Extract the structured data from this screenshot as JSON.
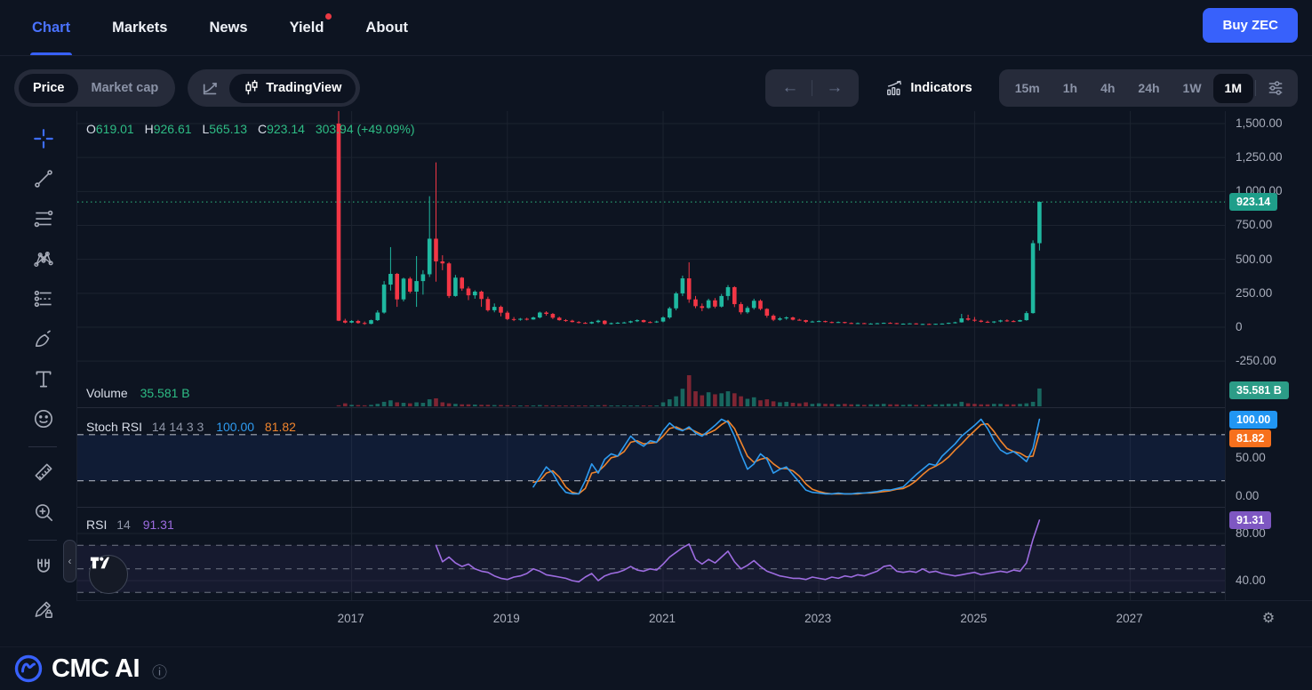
{
  "nav": {
    "items": [
      {
        "label": "Chart",
        "active": true,
        "dot": false
      },
      {
        "label": "Markets",
        "active": false,
        "dot": false
      },
      {
        "label": "News",
        "active": false,
        "dot": false
      },
      {
        "label": "Yield",
        "active": false,
        "dot": true
      },
      {
        "label": "About",
        "active": false,
        "dot": false
      }
    ],
    "buy_button": "Buy ZEC"
  },
  "toolbar": {
    "price_tab": "Price",
    "market_cap_tab": "Market cap",
    "tradingview_label": "TradingView",
    "indicators_label": "Indicators",
    "timeframes": [
      "15m",
      "1h",
      "4h",
      "24h",
      "1W",
      "1M"
    ],
    "active_timeframe": "1M"
  },
  "legend": {
    "o_label": "O",
    "o": "619.01",
    "h_label": "H",
    "h": "926.61",
    "l_label": "L",
    "l": "565.13",
    "c_label": "C",
    "c": "923.14",
    "change": "303.94 (+49.09%)"
  },
  "volume_legend": {
    "label": "Volume",
    "value": "35.581 B"
  },
  "stoch_legend": {
    "label": "Stoch RSI",
    "params": "14 14 3 3",
    "k_value": "100.00",
    "d_value": "81.82"
  },
  "rsi_legend": {
    "label": "RSI",
    "param": "14",
    "value": "91.31"
  },
  "axis": {
    "price_ticks": [
      {
        "v": 1500,
        "label": "1,500.00"
      },
      {
        "v": 1250,
        "label": "1,250.00"
      },
      {
        "v": 1000,
        "label": "1,000.00"
      },
      {
        "v": 750,
        "label": "750.00"
      },
      {
        "v": 500,
        "label": "500.00"
      },
      {
        "v": 250,
        "label": "250.00"
      },
      {
        "v": 0,
        "label": "0"
      },
      {
        "v": -250,
        "label": "-250.00"
      }
    ],
    "price_badge": "923.14",
    "volume_badge": "35.581 B",
    "stoch_ticks": [
      {
        "v": 50,
        "label": "50.00"
      },
      {
        "v": 0,
        "label": "0.00"
      }
    ],
    "stoch_badges": {
      "k": "100.00",
      "d": "81.82"
    },
    "rsi_ticks": [
      {
        "v": 80,
        "label": "80.00"
      },
      {
        "v": 40,
        "label": "40.00"
      }
    ],
    "rsi_badge": "91.31",
    "years": [
      "2017",
      "2019",
      "2021",
      "2023",
      "2025",
      "2027"
    ]
  },
  "sidebar_tools": [
    "crosshair",
    "trend-line",
    "fib-retracement",
    "xabcd-pattern",
    "long-position",
    "brush",
    "text",
    "emoji",
    "divider",
    "measure",
    "zoom-in",
    "divider",
    "magnet",
    "drawing-lock"
  ],
  "footer": {
    "title": "CMC AI",
    "info_icon": "info"
  },
  "colors": {
    "accent_blue": "#3861fb",
    "candle_up": "#1fb8a0",
    "candle_down": "#f23645",
    "teal_text": "#2ebd85",
    "price_badge_bg": "#1f9e8a",
    "volume_badge_bg": "#2c9c87",
    "stoch_k": "#2e9bf0",
    "stoch_d": "#f0842c",
    "stoch_k_badge_bg": "#2196f3",
    "stoch_d_badge_bg": "#f7701d",
    "rsi_line": "#9d6ce0",
    "rsi_badge_bg": "#7e57c2",
    "grid": "#1c2330",
    "red_dot": "#ea3943"
  },
  "chart_data": {
    "type": "candlestick",
    "symbol": "ZEC",
    "interval": "1M",
    "start_month": "2016-11",
    "current_price": 923.14,
    "price_axis": {
      "ticks": [
        1500,
        1250,
        1000,
        750,
        500,
        250,
        0,
        -250
      ],
      "zero_y_frac": 0.44
    },
    "years_axis": [
      "2017",
      "2019",
      "2021",
      "2023",
      "2025",
      "2027"
    ],
    "candles": [
      [
        1500,
        1600,
        45,
        48
      ],
      [
        48,
        62,
        28,
        34
      ],
      [
        34,
        52,
        30,
        46
      ],
      [
        46,
        54,
        26,
        31
      ],
      [
        31,
        42,
        18,
        25
      ],
      [
        25,
        56,
        22,
        52
      ],
      [
        52,
        125,
        46,
        108
      ],
      [
        108,
        340,
        100,
        314
      ],
      [
        314,
        590,
        270,
        393
      ],
      [
        393,
        400,
        150,
        205
      ],
      [
        205,
        365,
        190,
        358
      ],
      [
        358,
        370,
        250,
        262
      ],
      [
        262,
        524,
        150,
        340
      ],
      [
        340,
        420,
        240,
        390
      ],
      [
        390,
        965,
        370,
        652
      ],
      [
        652,
        1214,
        336,
        485
      ],
      [
        485,
        530,
        420,
        470
      ],
      [
        470,
        480,
        215,
        230
      ],
      [
        230,
        385,
        225,
        365
      ],
      [
        365,
        370,
        268,
        285
      ],
      [
        285,
        300,
        200,
        235
      ],
      [
        235,
        272,
        210,
        262
      ],
      [
        262,
        270,
        150,
        208
      ],
      [
        208,
        225,
        115,
        125
      ],
      [
        125,
        175,
        110,
        150
      ],
      [
        150,
        160,
        80,
        107
      ],
      [
        107,
        120,
        52,
        60
      ],
      [
        60,
        75,
        45,
        55
      ],
      [
        55,
        68,
        48,
        62
      ],
      [
        62,
        70,
        50,
        57
      ],
      [
        57,
        78,
        55,
        72
      ],
      [
        72,
        115,
        65,
        108
      ],
      [
        108,
        118,
        85,
        98
      ],
      [
        98,
        105,
        60,
        70
      ],
      [
        70,
        78,
        48,
        52
      ],
      [
        52,
        60,
        40,
        48
      ],
      [
        48,
        55,
        35,
        38
      ],
      [
        38,
        45,
        28,
        32
      ],
      [
        32,
        38,
        25,
        28
      ],
      [
        28,
        42,
        24,
        38
      ],
      [
        38,
        55,
        30,
        48
      ],
      [
        48,
        52,
        18,
        24
      ],
      [
        24,
        34,
        20,
        30
      ],
      [
        30,
        38,
        25,
        33
      ],
      [
        33,
        40,
        28,
        35
      ],
      [
        35,
        48,
        30,
        44
      ],
      [
        44,
        58,
        38,
        52
      ],
      [
        52,
        56,
        34,
        38
      ],
      [
        38,
        44,
        30,
        36
      ],
      [
        36,
        48,
        32,
        42
      ],
      [
        42,
        80,
        36,
        72
      ],
      [
        72,
        150,
        62,
        139
      ],
      [
        139,
        260,
        125,
        249
      ],
      [
        249,
        380,
        230,
        360
      ],
      [
        360,
        478,
        180,
        205
      ],
      [
        205,
        230,
        140,
        155
      ],
      [
        155,
        175,
        118,
        142
      ],
      [
        142,
        210,
        135,
        198
      ],
      [
        198,
        215,
        140,
        152
      ],
      [
        152,
        245,
        145,
        230
      ],
      [
        230,
        310,
        200,
        295
      ],
      [
        295,
        302,
        148,
        170
      ],
      [
        170,
        185,
        95,
        110
      ],
      [
        110,
        155,
        100,
        142
      ],
      [
        142,
        210,
        130,
        195
      ],
      [
        195,
        205,
        125,
        135
      ],
      [
        135,
        140,
        70,
        85
      ],
      [
        85,
        95,
        45,
        55
      ],
      [
        55,
        75,
        48,
        65
      ],
      [
        65,
        80,
        55,
        72
      ],
      [
        72,
        78,
        50,
        55
      ],
      [
        55,
        62,
        48,
        52
      ],
      [
        52,
        55,
        32,
        40
      ],
      [
        40,
        48,
        35,
        42
      ],
      [
        42,
        50,
        38,
        45
      ],
      [
        45,
        48,
        35,
        38
      ],
      [
        38,
        42,
        30,
        35
      ],
      [
        35,
        42,
        32,
        38
      ],
      [
        38,
        40,
        28,
        31
      ],
      [
        31,
        35,
        25,
        28
      ],
      [
        28,
        34,
        26,
        30
      ],
      [
        30,
        32,
        24,
        26
      ],
      [
        26,
        30,
        23,
        27
      ],
      [
        27,
        32,
        25,
        29
      ],
      [
        29,
        34,
        27,
        32
      ],
      [
        32,
        36,
        28,
        30
      ],
      [
        30,
        32,
        22,
        24
      ],
      [
        24,
        28,
        21,
        26
      ],
      [
        26,
        30,
        23,
        28
      ],
      [
        28,
        30,
        20,
        23
      ],
      [
        23,
        26,
        19,
        24
      ],
      [
        24,
        27,
        20,
        22
      ],
      [
        22,
        26,
        19,
        25
      ],
      [
        25,
        28,
        21,
        27
      ],
      [
        27,
        34,
        24,
        32
      ],
      [
        32,
        40,
        28,
        36
      ],
      [
        36,
        98,
        34,
        65
      ],
      [
        65,
        92,
        48,
        55
      ],
      [
        55,
        75,
        40,
        48
      ],
      [
        48,
        55,
        35,
        40
      ],
      [
        40,
        48,
        32,
        36
      ],
      [
        36,
        45,
        30,
        42
      ],
      [
        42,
        55,
        36,
        50
      ],
      [
        50,
        58,
        40,
        45
      ],
      [
        45,
        52,
        38,
        42
      ],
      [
        42,
        55,
        40,
        52
      ],
      [
        52,
        118,
        48,
        104
      ],
      [
        104,
        640,
        100,
        619
      ],
      [
        619,
        926.61,
        565.13,
        923.14
      ]
    ],
    "volume_b": [
      2,
      6,
      3,
      2.5,
      2,
      3,
      5,
      9,
      12,
      8,
      7,
      6,
      8,
      7,
      14,
      16,
      8,
      6,
      5,
      4,
      4,
      3.5,
      3,
      3,
      2.5,
      2.5,
      2,
      1.8,
      1.5,
      1.5,
      1.8,
      2.5,
      2,
      1.8,
      1.5,
      1.2,
      1.2,
      1,
      1,
      1.5,
      2,
      2.5,
      1.5,
      1.2,
      1.2,
      1.5,
      1.8,
      1.5,
      1.2,
      1.5,
      8,
      14,
      20,
      35,
      62,
      30,
      22,
      28,
      24,
      26,
      30,
      26,
      20,
      15,
      18,
      12,
      14,
      10,
      8,
      9,
      7,
      6,
      8,
      5,
      6,
      5,
      5,
      4,
      5,
      4,
      4,
      3,
      4,
      4,
      5,
      4,
      4,
      3,
      4,
      3,
      3,
      3,
      4,
      4,
      5,
      5,
      9,
      6,
      5,
      4,
      4,
      5,
      5,
      4,
      4,
      5,
      6,
      9,
      35.581
    ],
    "volume_current_b": 35.581,
    "stoch_rsi": {
      "params": [
        14,
        14,
        3,
        3
      ],
      "start_index": 30,
      "bands": [
        80,
        20
      ],
      "last_k": 100.0,
      "last_d": 81.82,
      "k": [
        12,
        25,
        38,
        30,
        15,
        5,
        3,
        3,
        20,
        42,
        30,
        48,
        55,
        52,
        65,
        78,
        70,
        65,
        72,
        70,
        85,
        95,
        88,
        85,
        90,
        82,
        78,
        85,
        92,
        100,
        96,
        78,
        55,
        35,
        42,
        55,
        48,
        30,
        35,
        38,
        28,
        18,
        8,
        5,
        4,
        3,
        3,
        4,
        3,
        3,
        4,
        4,
        5,
        6,
        8,
        8,
        10,
        12,
        20,
        28,
        35,
        42,
        40,
        52,
        60,
        68,
        78,
        85,
        92,
        100,
        88,
        72,
        60,
        55,
        58,
        52,
        45,
        62,
        100
      ],
      "d": [
        18,
        20,
        30,
        33,
        25,
        12,
        5,
        3,
        10,
        30,
        32,
        40,
        50,
        52,
        58,
        70,
        72,
        68,
        69,
        70,
        78,
        88,
        90,
        86,
        88,
        84,
        80,
        82,
        86,
        93,
        98,
        88,
        70,
        52,
        44,
        48,
        50,
        42,
        36,
        36,
        33,
        26,
        16,
        9,
        6,
        4,
        3,
        3,
        3,
        3,
        3,
        4,
        4,
        5,
        6,
        7,
        9,
        10,
        14,
        20,
        28,
        35,
        39,
        44,
        51,
        60,
        68,
        77,
        85,
        93,
        94,
        84,
        72,
        62,
        58,
        56,
        51,
        52,
        81.82
      ]
    },
    "rsi": {
      "period": 14,
      "start_index": 15,
      "bands": [
        70,
        50,
        30
      ],
      "last": 91.31,
      "values": [
        70,
        56,
        60,
        55,
        52,
        54,
        50,
        48,
        47,
        44,
        42,
        41,
        43,
        44,
        46,
        50,
        48,
        45,
        44,
        43,
        42,
        40,
        39,
        43,
        46,
        40,
        44,
        46,
        47,
        49,
        52,
        49,
        48,
        50,
        49,
        54,
        60,
        64,
        68,
        71,
        58,
        54,
        58,
        55,
        60,
        65,
        56,
        50,
        53,
        57,
        52,
        48,
        46,
        44,
        43,
        42,
        42,
        41,
        43,
        42,
        41,
        43,
        42,
        44,
        43,
        45,
        44,
        46,
        48,
        52,
        53,
        48,
        47,
        48,
        47,
        50,
        47,
        48,
        46,
        45,
        44,
        45,
        46,
        47,
        45,
        46,
        47,
        48,
        47,
        49,
        48,
        55,
        75,
        91.31
      ]
    }
  }
}
